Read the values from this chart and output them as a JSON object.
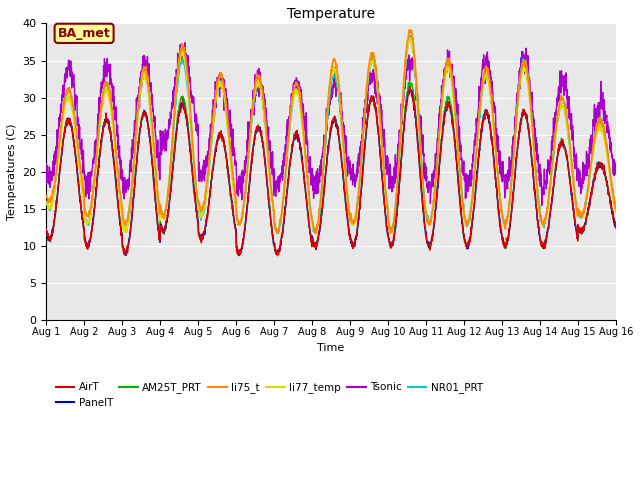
{
  "title": "Temperature",
  "xlabel": "Time",
  "ylabel": "Temperatures (C)",
  "ylim": [
    0,
    40
  ],
  "yticks": [
    0,
    5,
    10,
    15,
    20,
    25,
    30,
    35,
    40
  ],
  "annotation": "BA_met",
  "annotation_color": "#8B0000",
  "annotation_bg": "#FFFF99",
  "series": {
    "AirT": {
      "color": "#DD0000",
      "lw": 1.0
    },
    "PanelT": {
      "color": "#0000CC",
      "lw": 1.0
    },
    "AM25T_PRT": {
      "color": "#00BB00",
      "lw": 1.0
    },
    "li75_t": {
      "color": "#FF8800",
      "lw": 1.2
    },
    "li77_temp": {
      "color": "#DDDD00",
      "lw": 1.2
    },
    "Tsonic": {
      "color": "#AA00CC",
      "lw": 1.0
    },
    "NR01_PRT": {
      "color": "#00CCCC",
      "lw": 1.2
    }
  },
  "n_points": 2000,
  "days": 15,
  "background_color": "#E8E8E8",
  "grid_color": "#FFFFFF"
}
